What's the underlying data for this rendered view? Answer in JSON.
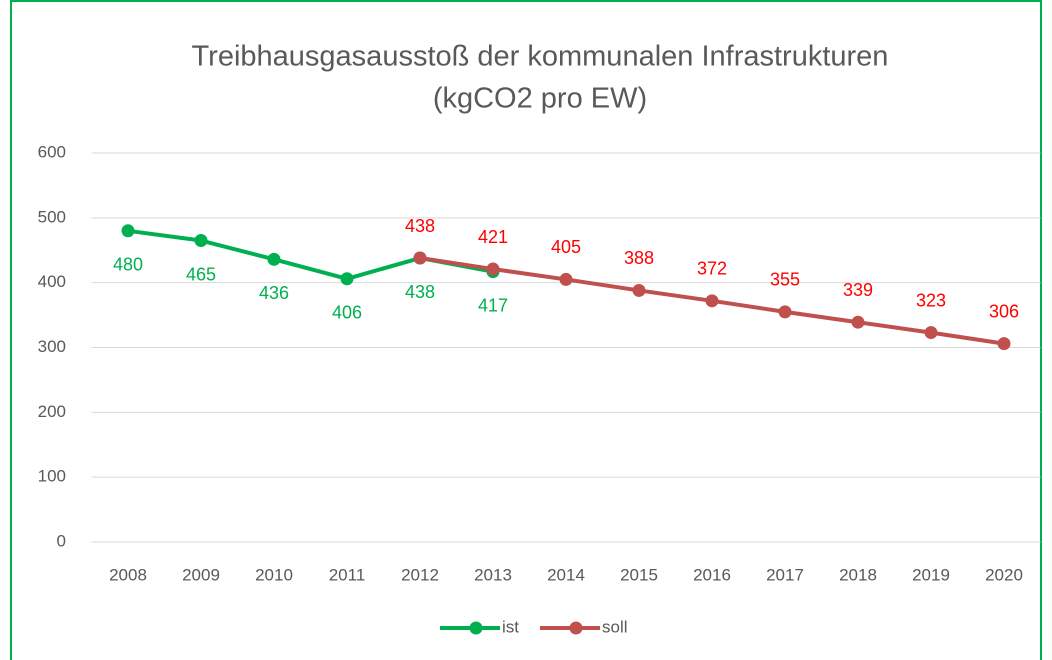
{
  "chart_data": {
    "type": "line",
    "title": [
      "Treibhausgasausstoß der kommunalen Infrastrukturen",
      "(kgCO2 pro EW)"
    ],
    "categories": [
      "2008",
      "2009",
      "2010",
      "2011",
      "2012",
      "2013",
      "2014",
      "2015",
      "2016",
      "2017",
      "2018",
      "2019",
      "2020"
    ],
    "series": [
      {
        "name": "ist",
        "color": "#00b050",
        "label_color": "#00b050",
        "label_side": "below",
        "values": [
          480,
          465,
          436,
          406,
          438,
          417,
          null,
          null,
          null,
          null,
          null,
          null,
          null
        ]
      },
      {
        "name": "soll",
        "color": "#c0504d",
        "label_color": "#ff0000",
        "label_side": "above",
        "values": [
          null,
          null,
          null,
          null,
          438,
          421,
          405,
          388,
          372,
          355,
          339,
          323,
          306
        ]
      }
    ],
    "ylim": [
      0,
      600
    ],
    "yticks": [
      0,
      100,
      200,
      300,
      400,
      500,
      600
    ],
    "grid": true,
    "legend": "bottom"
  }
}
